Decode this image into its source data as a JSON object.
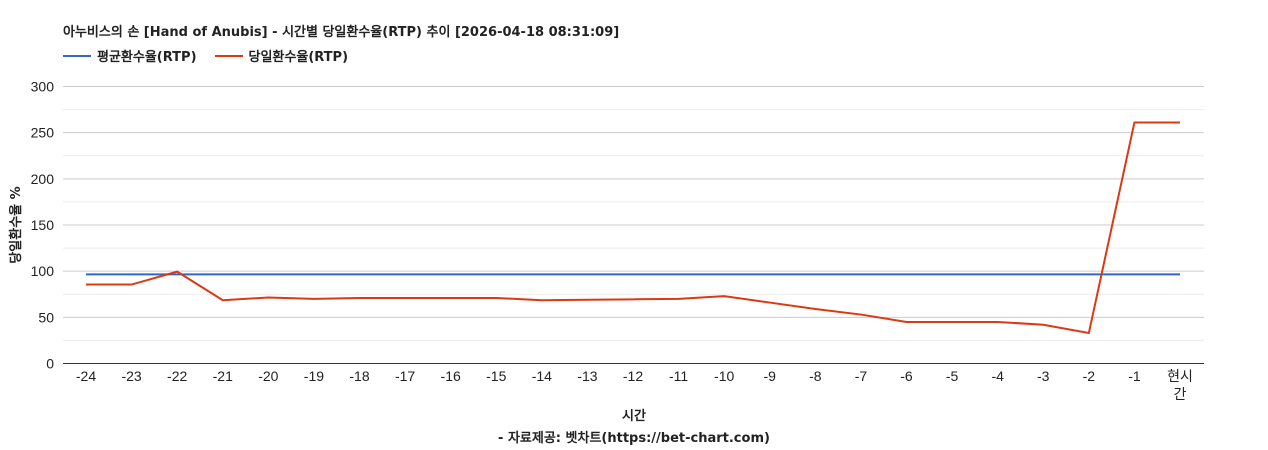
{
  "chart_data": {
    "type": "line",
    "title": "아누비스의 손 [Hand of Anubis] - 시간별 당일환수율(RTP) 추이 [2026-04-18 08:31:09]",
    "xlabel": "시간",
    "ylabel": "당일환수율 %",
    "footer": "- 자료제공: 벳차트(https://bet-chart.com)",
    "categories": [
      "-24",
      "-23",
      "-22",
      "-21",
      "-20",
      "-19",
      "-18",
      "-17",
      "-16",
      "-15",
      "-14",
      "-13",
      "-12",
      "-11",
      "-10",
      "-9",
      "-8",
      "-7",
      "-6",
      "-5",
      "-4",
      "-3",
      "-2",
      "-1",
      "현시간"
    ],
    "series": [
      {
        "name": "평균환수율(RTP)",
        "color": "#3366cc",
        "values": [
          96.5,
          96.5,
          96.5,
          96.5,
          96.5,
          96.5,
          96.5,
          96.5,
          96.5,
          96.5,
          96.5,
          96.5,
          96.5,
          96.5,
          96.5,
          96.5,
          96.5,
          96.5,
          96.5,
          96.5,
          96.5,
          96.5,
          96.5,
          96.5,
          96.5
        ]
      },
      {
        "name": "당일환수율(RTP)",
        "color": "#dc3912",
        "values": [
          85.5,
          85.5,
          99.5,
          68.5,
          71.5,
          70,
          71,
          71,
          71,
          71,
          68.5,
          69,
          69.5,
          70,
          73,
          66,
          59,
          53,
          45,
          45,
          45,
          42,
          33,
          261,
          261
        ]
      }
    ],
    "yticks": [
      0,
      50,
      100,
      150,
      200,
      250,
      300
    ],
    "ylim": [
      0,
      300
    ],
    "grid": true,
    "legend_position": "top"
  }
}
